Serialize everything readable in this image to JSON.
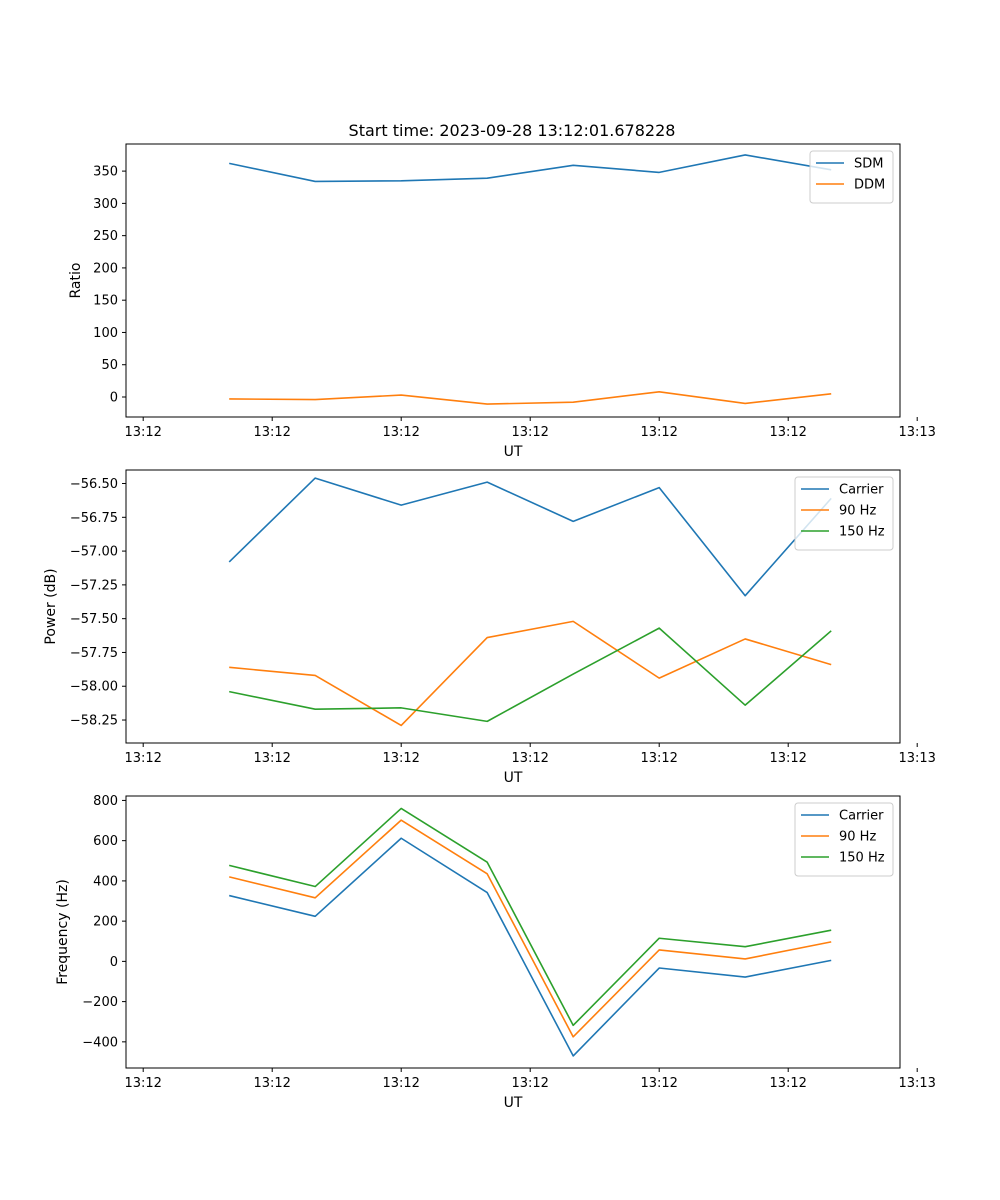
{
  "title": "Start time: 2023-09-28 13:12:01.678228",
  "colors": {
    "c0": "#1f77b4",
    "c1": "#ff7f0e",
    "c2": "#2ca02c"
  },
  "chart_data": [
    {
      "type": "line",
      "title": "Start time: 2023-09-28 13:12:01.678228",
      "xlabel": "UT",
      "ylabel": "Ratio",
      "x": [
        1.5,
        2.5,
        3.5,
        4.5,
        5.5,
        6.5,
        7.5,
        8.5
      ],
      "xlim": [
        0.3,
        9.3
      ],
      "xticks": [
        0.5,
        2,
        3.5,
        5,
        6.5,
        8,
        9.5
      ],
      "xticklabels": [
        "13:12",
        "13:12",
        "13:12",
        "13:12",
        "13:12",
        "13:12",
        "13:13"
      ],
      "ylim": [
        -31,
        392
      ],
      "yticks": [
        0,
        50,
        100,
        150,
        200,
        250,
        300,
        350
      ],
      "yticklabels": [
        "0",
        "50",
        "100",
        "150",
        "200",
        "250",
        "300",
        "350"
      ],
      "legend_position": "top-right",
      "series": [
        {
          "name": "SDM",
          "color": "#1f77b4",
          "values": [
            362,
            334,
            335,
            339,
            359,
            348,
            375,
            352
          ]
        },
        {
          "name": "DDM",
          "color": "#ff7f0e",
          "values": [
            -3,
            -4,
            3,
            -11,
            -8,
            8,
            -10,
            5
          ]
        }
      ]
    },
    {
      "type": "line",
      "title": "",
      "xlabel": "UT",
      "ylabel": "Power (dB)",
      "x": [
        1.5,
        2.5,
        3.5,
        4.5,
        5.5,
        6.5,
        7.5,
        8.5
      ],
      "xlim": [
        0.3,
        9.3
      ],
      "xticks": [
        0.5,
        2,
        3.5,
        5,
        6.5,
        8,
        9.5
      ],
      "xticklabels": [
        "13:12",
        "13:12",
        "13:12",
        "13:12",
        "13:12",
        "13:12",
        "13:13"
      ],
      "ylim": [
        -58.42,
        -56.4
      ],
      "yticks": [
        -58.25,
        -58.0,
        -57.75,
        -57.5,
        -57.25,
        -57.0,
        -56.75,
        -56.5
      ],
      "yticklabels": [
        "−58.25",
        "−58.00",
        "−57.75",
        "−57.50",
        "−57.25",
        "−57.00",
        "−56.75",
        "−56.50"
      ],
      "legend_position": "top-right",
      "series": [
        {
          "name": "Carrier",
          "color": "#1f77b4",
          "values": [
            -57.08,
            -56.46,
            -56.66,
            -56.49,
            -56.78,
            -56.53,
            -57.33,
            -56.61
          ]
        },
        {
          "name": "90 Hz",
          "color": "#ff7f0e",
          "values": [
            -57.86,
            -57.92,
            -58.29,
            -57.64,
            -57.52,
            -57.94,
            -57.65,
            -57.84
          ]
        },
        {
          "name": "150 Hz",
          "color": "#2ca02c",
          "values": [
            -58.04,
            -58.17,
            -58.16,
            -58.26,
            -57.91,
            -57.57,
            -58.14,
            -57.59
          ]
        }
      ]
    },
    {
      "type": "line",
      "title": "",
      "xlabel": "UT",
      "ylabel": "Frequency (Hz)",
      "x": [
        1.5,
        2.5,
        3.5,
        4.5,
        5.5,
        6.5,
        7.5,
        8.5
      ],
      "xlim": [
        0.3,
        9.3
      ],
      "xticks": [
        0.5,
        2,
        3.5,
        5,
        6.5,
        8,
        9.5
      ],
      "xticklabels": [
        "13:12",
        "13:12",
        "13:12",
        "13:12",
        "13:12",
        "13:12",
        "13:13"
      ],
      "ylim": [
        -530,
        822
      ],
      "yticks": [
        -400,
        -200,
        0,
        200,
        400,
        600,
        800
      ],
      "yticklabels": [
        "−400",
        "−200",
        "0",
        "200",
        "400",
        "600",
        "800"
      ],
      "legend_position": "top-right",
      "series": [
        {
          "name": "Carrier",
          "color": "#1f77b4",
          "values": [
            327,
            224,
            612,
            342,
            -470,
            -33,
            -78,
            5
          ]
        },
        {
          "name": "90 Hz",
          "color": "#ff7f0e",
          "values": [
            420,
            316,
            702,
            435,
            -375,
            57,
            12,
            97
          ]
        },
        {
          "name": "150 Hz",
          "color": "#2ca02c",
          "values": [
            477,
            372,
            760,
            493,
            -318,
            115,
            73,
            155
          ]
        }
      ]
    }
  ]
}
